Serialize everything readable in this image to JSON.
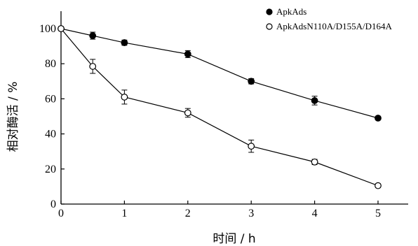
{
  "chart_data": {
    "type": "line",
    "title": "",
    "xlabel": "时间 / h",
    "ylabel": "相对酶活 / %",
    "x": [
      0,
      0.5,
      1,
      2,
      3,
      4,
      5
    ],
    "xlim": [
      0,
      5.4
    ],
    "ylim": [
      0,
      110
    ],
    "xticks": [
      0,
      1,
      2,
      3,
      4,
      5
    ],
    "yticks": [
      0,
      20,
      40,
      60,
      80,
      100
    ],
    "grid": false,
    "legend_position": "top-right",
    "series": [
      {
        "name": "ApkAds",
        "marker": "filled-circle",
        "values": [
          100,
          96,
          92,
          85.5,
          70,
          59,
          49
        ],
        "errors": [
          1,
          2,
          1.5,
          2,
          1.5,
          2.5,
          1
        ]
      },
      {
        "name": "ApkAdsN110A/D155A/D164A",
        "marker": "open-circle",
        "values": [
          100,
          78.5,
          61,
          52,
          33,
          24,
          10.5
        ],
        "errors": [
          1,
          4,
          4,
          2.5,
          3.5,
          1.5,
          1
        ]
      }
    ]
  }
}
